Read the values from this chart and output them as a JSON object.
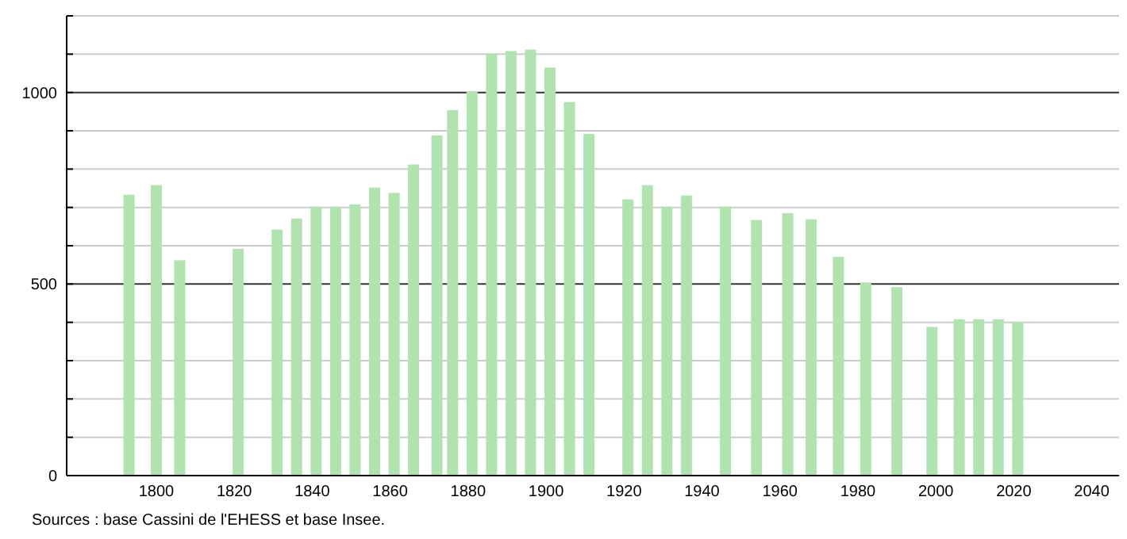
{
  "chart_data": {
    "type": "bar",
    "x": [
      1793,
      1800,
      1806,
      1821,
      1831,
      1836,
      1841,
      1846,
      1851,
      1856,
      1861,
      1866,
      1872,
      1876,
      1881,
      1886,
      1891,
      1896,
      1901,
      1906,
      1911,
      1921,
      1926,
      1931,
      1936,
      1946,
      1954,
      1962,
      1968,
      1975,
      1982,
      1990,
      1999,
      2006,
      2011,
      2016,
      2021
    ],
    "values": [
      733,
      758,
      562,
      592,
      642,
      671,
      702,
      702,
      708,
      752,
      738,
      812,
      888,
      954,
      1002,
      1102,
      1108,
      1112,
      1065,
      975,
      892,
      721,
      758,
      702,
      731,
      702,
      667,
      685,
      669,
      571,
      504,
      492,
      388,
      408,
      408,
      408,
      400
    ],
    "color": "#b0e3b0",
    "xlim": [
      1777,
      2047
    ],
    "xticks": [
      1800,
      1820,
      1840,
      1860,
      1880,
      1900,
      1920,
      1940,
      1960,
      1980,
      2000,
      2020,
      2040
    ],
    "ylim": [
      0,
      1200
    ],
    "yticks": [
      0,
      {
        "value": 100,
        "label": null
      },
      {
        "value": 200,
        "label": null
      },
      {
        "value": 300,
        "label": null
      },
      {
        "value": 400,
        "label": null
      },
      500,
      {
        "value": 600,
        "label": null
      },
      {
        "value": 700,
        "label": null
      },
      {
        "value": 800,
        "label": null
      },
      {
        "value": 900,
        "label": null
      },
      1000,
      {
        "value": 1100,
        "label": null
      },
      {
        "value": 1200,
        "label": null
      }
    ],
    "grid": true,
    "annotations": [
      "Sources : base Cassini de l'EHESS et base Insee."
    ]
  }
}
